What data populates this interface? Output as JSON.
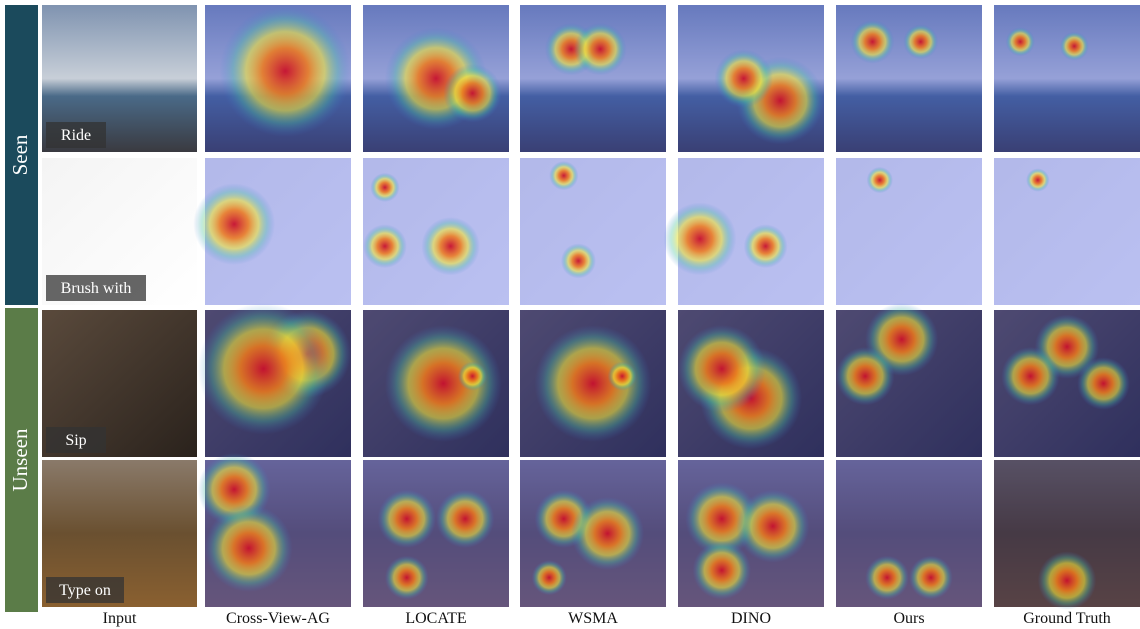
{
  "groups": [
    {
      "label": "Seen"
    },
    {
      "label": "Unseen"
    }
  ],
  "rows": [
    {
      "label": "Ride"
    },
    {
      "label": "Brush with"
    },
    {
      "label": "Sip"
    },
    {
      "label": "Type on"
    }
  ],
  "columns": [
    "Input",
    "Cross-View-AG",
    "LOCATE",
    "WSMA",
    "DINO",
    "Ours",
    "Ground Truth"
  ]
}
